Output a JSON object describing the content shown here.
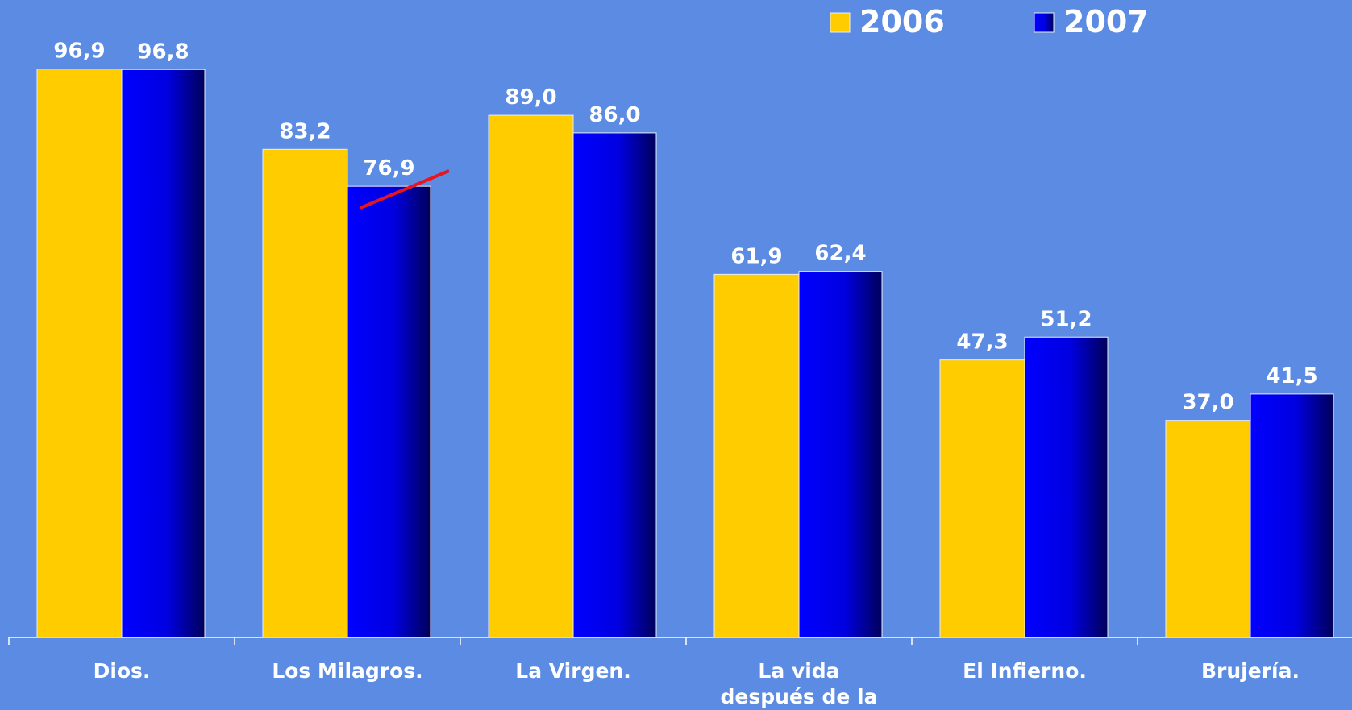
{
  "chart_data": {
    "type": "bar",
    "categories": [
      "Dios.",
      "Los Milagros.",
      "La Virgen.",
      "La vida después de la muerte.",
      "El Infierno.",
      "Brujería."
    ],
    "series": [
      {
        "name": "2006",
        "color": "#ffcc00",
        "values": [
          96.9,
          83.2,
          89.0,
          61.9,
          47.3,
          37.0
        ],
        "value_labels": [
          "96,9",
          "83,2",
          "89,0",
          "61,9",
          "47,3",
          "37,0"
        ]
      },
      {
        "name": "2007",
        "color": "#0000ff",
        "values": [
          96.8,
          76.9,
          86.0,
          62.4,
          51.2,
          41.5
        ],
        "value_labels": [
          "96,8",
          "76,9",
          "86,0",
          "62,4",
          "51,2",
          "41,5"
        ]
      }
    ],
    "ylim": [
      0,
      100
    ],
    "legend": "top-right"
  }
}
